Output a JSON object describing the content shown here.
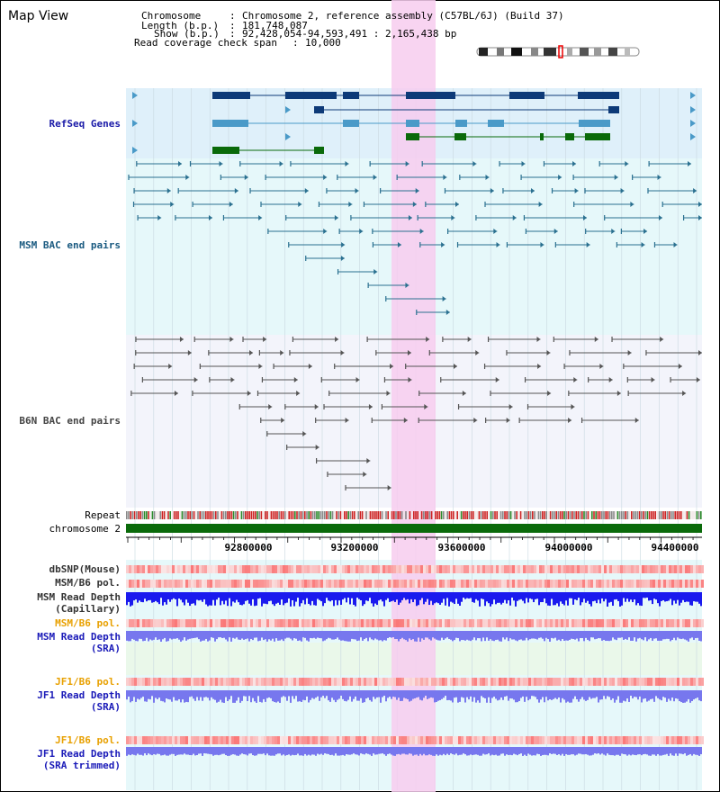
{
  "app": {
    "title": "Map View"
  },
  "info": {
    "chromosome_label": "Chromosome",
    "chromosome_value": "Chromosome 2, reference assembly (C57BL/6J) (Build 37)",
    "length_label": "Length (b.p.)",
    "length_value": "181,748,087",
    "show_label": "Show (b.p.)",
    "show_value": "92,428,054-94,593,491 : 2,165,438 bp",
    "span_label": "Read coverage check span",
    "span_value": "10,000"
  },
  "tracks": {
    "refseq": "RefSeq Genes",
    "msm_bac": "MSM BAC end pairs",
    "b6n_bac": "B6N BAC end pairs",
    "repeat": "Repeat",
    "chromosome": "chromosome 2",
    "dbsnp": "dbSNP(Mouse)",
    "msm_b6_pol": "MSM/B6 pol.",
    "msm_depth_cap": "MSM Read Depth\n(Capillary)",
    "msm_b6_pol_sra": "MSM/B6 pol.",
    "msm_depth_sra": "MSM Read Depth\n(SRA)",
    "jf1_b6_pol": "JF1/B6 pol.",
    "jf1_depth_sra": "JF1 Read Depth\n(SRA)",
    "jf1_b6_pol_trim": "JF1/B6 pol.",
    "jf1_depth_trim": "JF1 Read Depth\n(SRA trimmed)"
  },
  "axis": {
    "ticks": [
      "92800000",
      "93200000",
      "93600000",
      "94000000",
      "94400000"
    ]
  },
  "colors": {
    "refseq_dark": "#0d3a78",
    "refseq_light": "#4a9ac8",
    "refseq_green": "#0a6a0a",
    "msm_bac": "#2a7090",
    "b6n_bac": "#555555",
    "highlight": "#f7d3ef",
    "depth_blue": "#1a1aee",
    "depth_light": "#7777ee"
  }
}
